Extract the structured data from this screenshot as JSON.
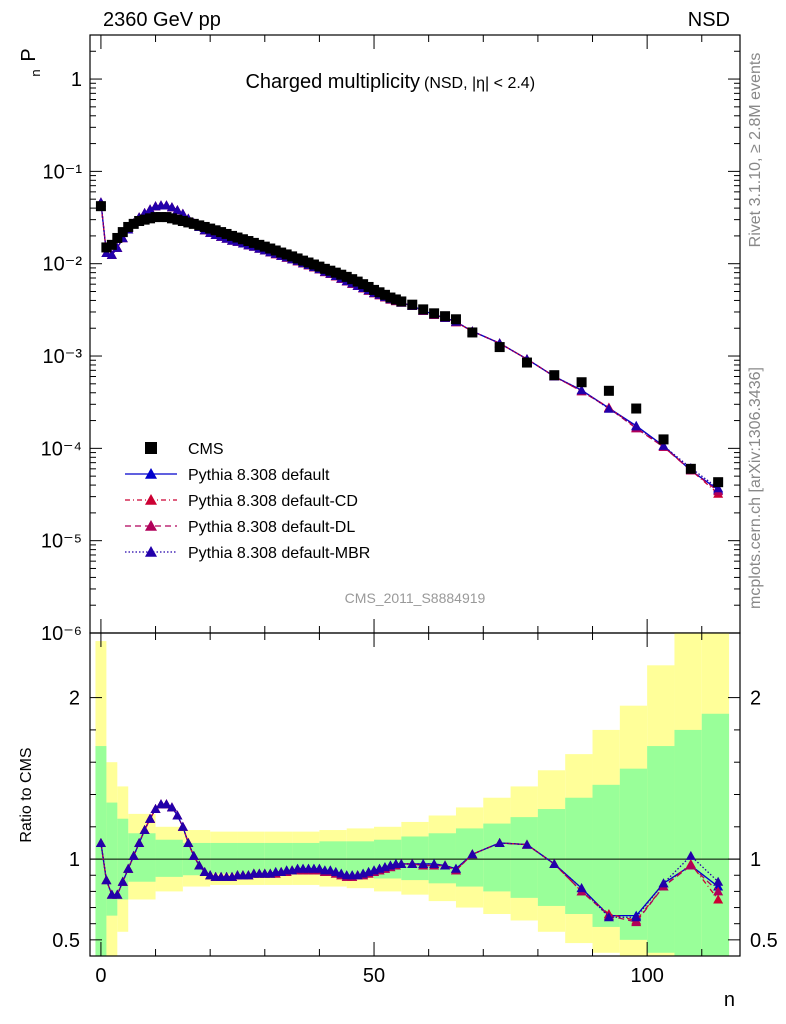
{
  "header": {
    "left": "2360 GeV pp",
    "right": "NSD"
  },
  "side_text": {
    "top": "Rivet 3.1.10, ≥ 2.8M events",
    "bottom": "mcplots.cern.ch [arXiv:1306.3436]"
  },
  "colors": {
    "cms": "#000000",
    "default": "#0000cc",
    "cd": "#cc0033",
    "dl": "#b0005a",
    "mbr": "#2200aa",
    "band_yellow": "#ffff99",
    "band_green": "#99ff99"
  },
  "chart_data": [
    {
      "type": "scatter",
      "title": "Charged multiplicity",
      "title_sub": "(NSD, |η| < 2.4)",
      "ylabel": "P",
      "ylabel_sub": "n",
      "y_scale": "log",
      "ylim": [
        1e-06,
        3
      ],
      "xlim": [
        -2,
        117
      ],
      "y_ticks": [
        {
          "v": 1,
          "t": "1"
        },
        {
          "v": 0.1,
          "t": "10⁻¹"
        },
        {
          "v": 0.01,
          "t": "10⁻²"
        },
        {
          "v": 0.001,
          "t": "10⁻³"
        },
        {
          "v": 0.0001,
          "t": "10⁻⁴"
        },
        {
          "v": 1e-05,
          "t": "10⁻⁵"
        },
        {
          "v": 1e-06,
          "t": "10⁻⁶"
        }
      ],
      "watermark": "CMS_2011_S8884919",
      "legend": [
        "CMS",
        "Pythia 8.308 default",
        "Pythia 8.308 default-CD",
        "Pythia 8.308 default-DL",
        "Pythia 8.308 default-MBR"
      ],
      "legend_position": "lower-left",
      "cms": {
        "x": [
          0,
          1,
          2,
          3,
          4,
          5,
          6,
          7,
          8,
          9,
          10,
          11,
          12,
          13,
          14,
          15,
          16,
          17,
          18,
          19,
          20,
          21,
          22,
          23,
          24,
          25,
          26,
          27,
          28,
          29,
          30,
          31,
          32,
          33,
          34,
          35,
          36,
          37,
          38,
          39,
          40,
          41,
          42,
          43,
          44,
          45,
          46,
          47,
          48,
          49,
          50,
          51,
          52,
          53,
          54,
          55,
          57,
          59,
          61,
          63,
          65,
          68,
          73,
          78,
          83,
          88,
          93,
          98,
          103,
          108,
          113
        ],
        "y": [
          0.042,
          0.015,
          0.016,
          0.019,
          0.022,
          0.025,
          0.027,
          0.029,
          0.03,
          0.031,
          0.032,
          0.032,
          0.032,
          0.031,
          0.03,
          0.029,
          0.028,
          0.027,
          0.026,
          0.025,
          0.024,
          0.023,
          0.022,
          0.021,
          0.02,
          0.0192,
          0.0184,
          0.0176,
          0.0168,
          0.016,
          0.0153,
          0.0146,
          0.0139,
          0.0132,
          0.0126,
          0.012,
          0.0114,
          0.0108,
          0.0103,
          0.0098,
          0.0093,
          0.0088,
          0.0084,
          0.008,
          0.0076,
          0.0072,
          0.0068,
          0.0064,
          0.006,
          0.0056,
          0.0052,
          0.0049,
          0.0046,
          0.0043,
          0.0041,
          0.0039,
          0.0036,
          0.0032,
          0.0029,
          0.0027,
          0.0025,
          0.0018,
          0.00125,
          0.00085,
          0.00062,
          0.00052,
          0.00042,
          0.00027,
          0.000125,
          6e-05,
          4.3e-05
        ]
      },
      "mc_x": [
        0,
        1,
        2,
        3,
        4,
        5,
        6,
        7,
        8,
        9,
        10,
        11,
        12,
        13,
        14,
        15,
        16,
        17,
        18,
        19,
        20,
        21,
        22,
        23,
        24,
        25,
        26,
        27,
        28,
        29,
        30,
        31,
        32,
        33,
        34,
        35,
        36,
        37,
        38,
        39,
        40,
        41,
        42,
        43,
        44,
        45,
        46,
        47,
        48,
        49,
        50,
        51,
        52,
        53,
        54,
        55,
        57,
        59,
        61,
        63,
        65,
        68,
        73,
        78,
        83,
        88,
        93,
        98,
        103,
        108,
        113
      ],
      "ratio_default": [
        1.1,
        0.87,
        0.78,
        0.78,
        0.86,
        0.94,
        1.02,
        1.1,
        1.18,
        1.25,
        1.31,
        1.34,
        1.34,
        1.32,
        1.27,
        1.2,
        1.1,
        1.02,
        0.96,
        0.92,
        0.9,
        0.89,
        0.89,
        0.89,
        0.89,
        0.9,
        0.9,
        0.9,
        0.91,
        0.91,
        0.91,
        0.91,
        0.92,
        0.92,
        0.93,
        0.93,
        0.94,
        0.94,
        0.94,
        0.94,
        0.94,
        0.93,
        0.93,
        0.92,
        0.91,
        0.9,
        0.9,
        0.9,
        0.91,
        0.92,
        0.93,
        0.94,
        0.95,
        0.96,
        0.97,
        0.97,
        0.97,
        0.97,
        0.97,
        0.96,
        0.94,
        1.03,
        1.1,
        1.09,
        0.97,
        0.82,
        0.65,
        0.65,
        0.85,
        0.96,
        0.83
      ],
      "ratio_cd": [
        1.1,
        0.87,
        0.78,
        0.78,
        0.86,
        0.94,
        1.02,
        1.1,
        1.18,
        1.25,
        1.31,
        1.34,
        1.34,
        1.32,
        1.27,
        1.2,
        1.1,
        1.02,
        0.96,
        0.92,
        0.9,
        0.89,
        0.89,
        0.89,
        0.89,
        0.9,
        0.9,
        0.9,
        0.91,
        0.91,
        0.91,
        0.91,
        0.91,
        0.92,
        0.92,
        0.93,
        0.93,
        0.93,
        0.93,
        0.93,
        0.93,
        0.92,
        0.92,
        0.91,
        0.9,
        0.89,
        0.89,
        0.9,
        0.9,
        0.91,
        0.92,
        0.93,
        0.94,
        0.95,
        0.96,
        0.97,
        0.97,
        0.96,
        0.96,
        0.96,
        0.93,
        1.03,
        1.1,
        1.09,
        0.97,
        0.8,
        0.66,
        0.62,
        0.83,
        0.97,
        0.75
      ],
      "ratio_dl": [
        1.1,
        0.87,
        0.78,
        0.78,
        0.86,
        0.94,
        1.02,
        1.1,
        1.18,
        1.25,
        1.31,
        1.34,
        1.34,
        1.32,
        1.27,
        1.2,
        1.1,
        1.02,
        0.96,
        0.92,
        0.9,
        0.89,
        0.89,
        0.89,
        0.89,
        0.9,
        0.9,
        0.9,
        0.91,
        0.91,
        0.91,
        0.91,
        0.91,
        0.92,
        0.92,
        0.93,
        0.93,
        0.93,
        0.93,
        0.93,
        0.93,
        0.92,
        0.92,
        0.91,
        0.9,
        0.89,
        0.89,
        0.9,
        0.9,
        0.91,
        0.92,
        0.93,
        0.94,
        0.95,
        0.96,
        0.97,
        0.97,
        0.96,
        0.96,
        0.96,
        0.93,
        1.03,
        1.1,
        1.09,
        0.97,
        0.8,
        0.65,
        0.61,
        0.83,
        0.96,
        0.8
      ],
      "ratio_mbr": [
        1.1,
        0.87,
        0.78,
        0.78,
        0.86,
        0.94,
        1.02,
        1.1,
        1.18,
        1.25,
        1.31,
        1.34,
        1.34,
        1.32,
        1.27,
        1.2,
        1.1,
        1.02,
        0.96,
        0.92,
        0.9,
        0.89,
        0.89,
        0.89,
        0.89,
        0.9,
        0.9,
        0.9,
        0.91,
        0.91,
        0.91,
        0.91,
        0.92,
        0.92,
        0.93,
        0.93,
        0.94,
        0.94,
        0.94,
        0.94,
        0.94,
        0.93,
        0.93,
        0.92,
        0.91,
        0.9,
        0.9,
        0.9,
        0.91,
        0.92,
        0.93,
        0.94,
        0.95,
        0.96,
        0.97,
        0.97,
        0.97,
        0.97,
        0.97,
        0.96,
        0.94,
        1.03,
        1.1,
        1.09,
        0.97,
        0.82,
        0.64,
        0.64,
        0.85,
        1.02,
        0.86
      ]
    },
    {
      "type": "scatter",
      "ylabel": "Ratio to CMS",
      "xlabel": "n",
      "ylim": [
        0.4,
        2.4
      ],
      "xlim": [
        -2,
        117
      ],
      "y_ticks": [
        {
          "v": 0.5,
          "t": "0.5"
        },
        {
          "v": 1,
          "t": "1"
        },
        {
          "v": 2,
          "t": "2"
        }
      ],
      "x_ticks": [
        {
          "v": 0,
          "t": "0"
        },
        {
          "v": 50,
          "t": "50"
        },
        {
          "v": 100,
          "t": "100"
        }
      ],
      "band_edges": [
        -1,
        1,
        3,
        5,
        10,
        15,
        20,
        25,
        30,
        35,
        40,
        45,
        50,
        55,
        60,
        65,
        70,
        75,
        80,
        85,
        90,
        95,
        100,
        105,
        110,
        115
      ],
      "band_yellow": [
        [
          0.35,
          2.35
        ],
        [
          0.4,
          1.6
        ],
        [
          0.55,
          1.45
        ],
        [
          0.75,
          1.28
        ],
        [
          0.8,
          1.2
        ],
        [
          0.83,
          1.18
        ],
        [
          0.84,
          1.17
        ],
        [
          0.84,
          1.17
        ],
        [
          0.84,
          1.17
        ],
        [
          0.84,
          1.17
        ],
        [
          0.83,
          1.18
        ],
        [
          0.82,
          1.19
        ],
        [
          0.8,
          1.2
        ],
        [
          0.78,
          1.23
        ],
        [
          0.74,
          1.27
        ],
        [
          0.7,
          1.32
        ],
        [
          0.66,
          1.38
        ],
        [
          0.62,
          1.45
        ],
        [
          0.55,
          1.55
        ],
        [
          0.48,
          1.65
        ],
        [
          0.42,
          1.8
        ],
        [
          0.35,
          1.95
        ],
        [
          0.3,
          2.2
        ],
        [
          0.3,
          2.5
        ],
        [
          0.3,
          2.5
        ]
      ],
      "band_green": [
        [
          0.35,
          1.7
        ],
        [
          0.65,
          1.35
        ],
        [
          0.75,
          1.25
        ],
        [
          0.86,
          1.16
        ],
        [
          0.89,
          1.12
        ],
        [
          0.9,
          1.1
        ],
        [
          0.91,
          1.1
        ],
        [
          0.91,
          1.1
        ],
        [
          0.91,
          1.1
        ],
        [
          0.91,
          1.1
        ],
        [
          0.9,
          1.11
        ],
        [
          0.89,
          1.11
        ],
        [
          0.88,
          1.12
        ],
        [
          0.87,
          1.14
        ],
        [
          0.85,
          1.16
        ],
        [
          0.83,
          1.19
        ],
        [
          0.8,
          1.22
        ],
        [
          0.76,
          1.26
        ],
        [
          0.71,
          1.31
        ],
        [
          0.66,
          1.38
        ],
        [
          0.58,
          1.46
        ],
        [
          0.5,
          1.56
        ],
        [
          0.42,
          1.7
        ],
        [
          0.35,
          1.8
        ],
        [
          0.35,
          1.9
        ]
      ]
    }
  ]
}
